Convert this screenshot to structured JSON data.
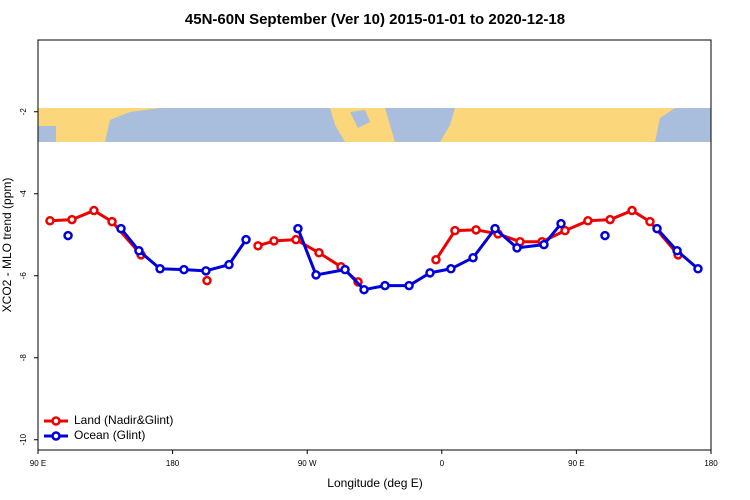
{
  "chart_data": {
    "type": "line",
    "title": "45N-60N September (Ver 10)   2015-01-01 to 2020-12-18",
    "x_label": "Longitude (deg E)",
    "y_label": "XCO2 - MLO trend (ppm)",
    "xlim": [
      90,
      540
    ],
    "xticks": [
      {
        "value": 90,
        "label": "90 E"
      },
      180,
      {
        "value": 270,
        "label": "90 W"
      },
      {
        "value": 360,
        "label": "0"
      },
      {
        "value": 450,
        "label": "90 E"
      },
      {
        "value": 540,
        "label": "180"
      }
    ],
    "ylim": [
      -10.25,
      -0.25
    ],
    "yticks": [
      -2,
      -4,
      -6,
      -8,
      -10
    ],
    "grid": false,
    "legend": "bottom-left",
    "series": [
      {
        "name": "Land (Nadir&Glint)",
        "color": "#ee0000",
        "x": [
          98,
          112.7,
          127.4,
          139.5,
          158.9,
          null,
          203,
          null,
          237.1,
          247.8,
          262.5,
          277.9,
          292.6,
          304,
          null,
          356.1,
          368.8,
          382.9,
          397.6,
          412.3,
          427,
          442.4,
          457.7,
          472.5,
          487.2,
          499.2,
          518
        ],
        "values": [
          -4.66,
          -4.63,
          -4.41,
          -4.68,
          -5.49,
          null,
          -6.12,
          null,
          -5.27,
          -5.15,
          -5.12,
          -5.44,
          -5.78,
          -6.15,
          null,
          -5.61,
          -4.9,
          -4.88,
          -4.98,
          -5.17,
          -5.17,
          -4.9,
          -4.66,
          -4.63,
          -4.41,
          -4.68,
          -5.49
        ]
      },
      {
        "name": "Ocean (Glint)",
        "color": "#0000dd",
        "x": [
          110.1,
          null,
          145.5,
          157.5,
          171.6,
          187.6,
          202.3,
          217.7,
          229.1,
          null,
          263.8,
          275.9,
          295.3,
          308,
          322,
          338.1,
          352.1,
          366.1,
          380.9,
          395.6,
          410.3,
          428.3,
          439.7,
          null,
          469.1,
          null,
          503.9,
          517.3,
          531.3
        ],
        "values": [
          -5.02,
          null,
          -4.85,
          -5.39,
          -5.83,
          -5.85,
          -5.88,
          -5.73,
          -5.12,
          null,
          -4.85,
          -5.98,
          -5.85,
          -6.34,
          -6.24,
          -6.24,
          -5.93,
          -5.83,
          -5.56,
          -4.85,
          -5.32,
          -5.24,
          -4.73,
          null,
          -5.02,
          null,
          -4.85,
          -5.39,
          -5.83
        ]
      }
    ]
  }
}
